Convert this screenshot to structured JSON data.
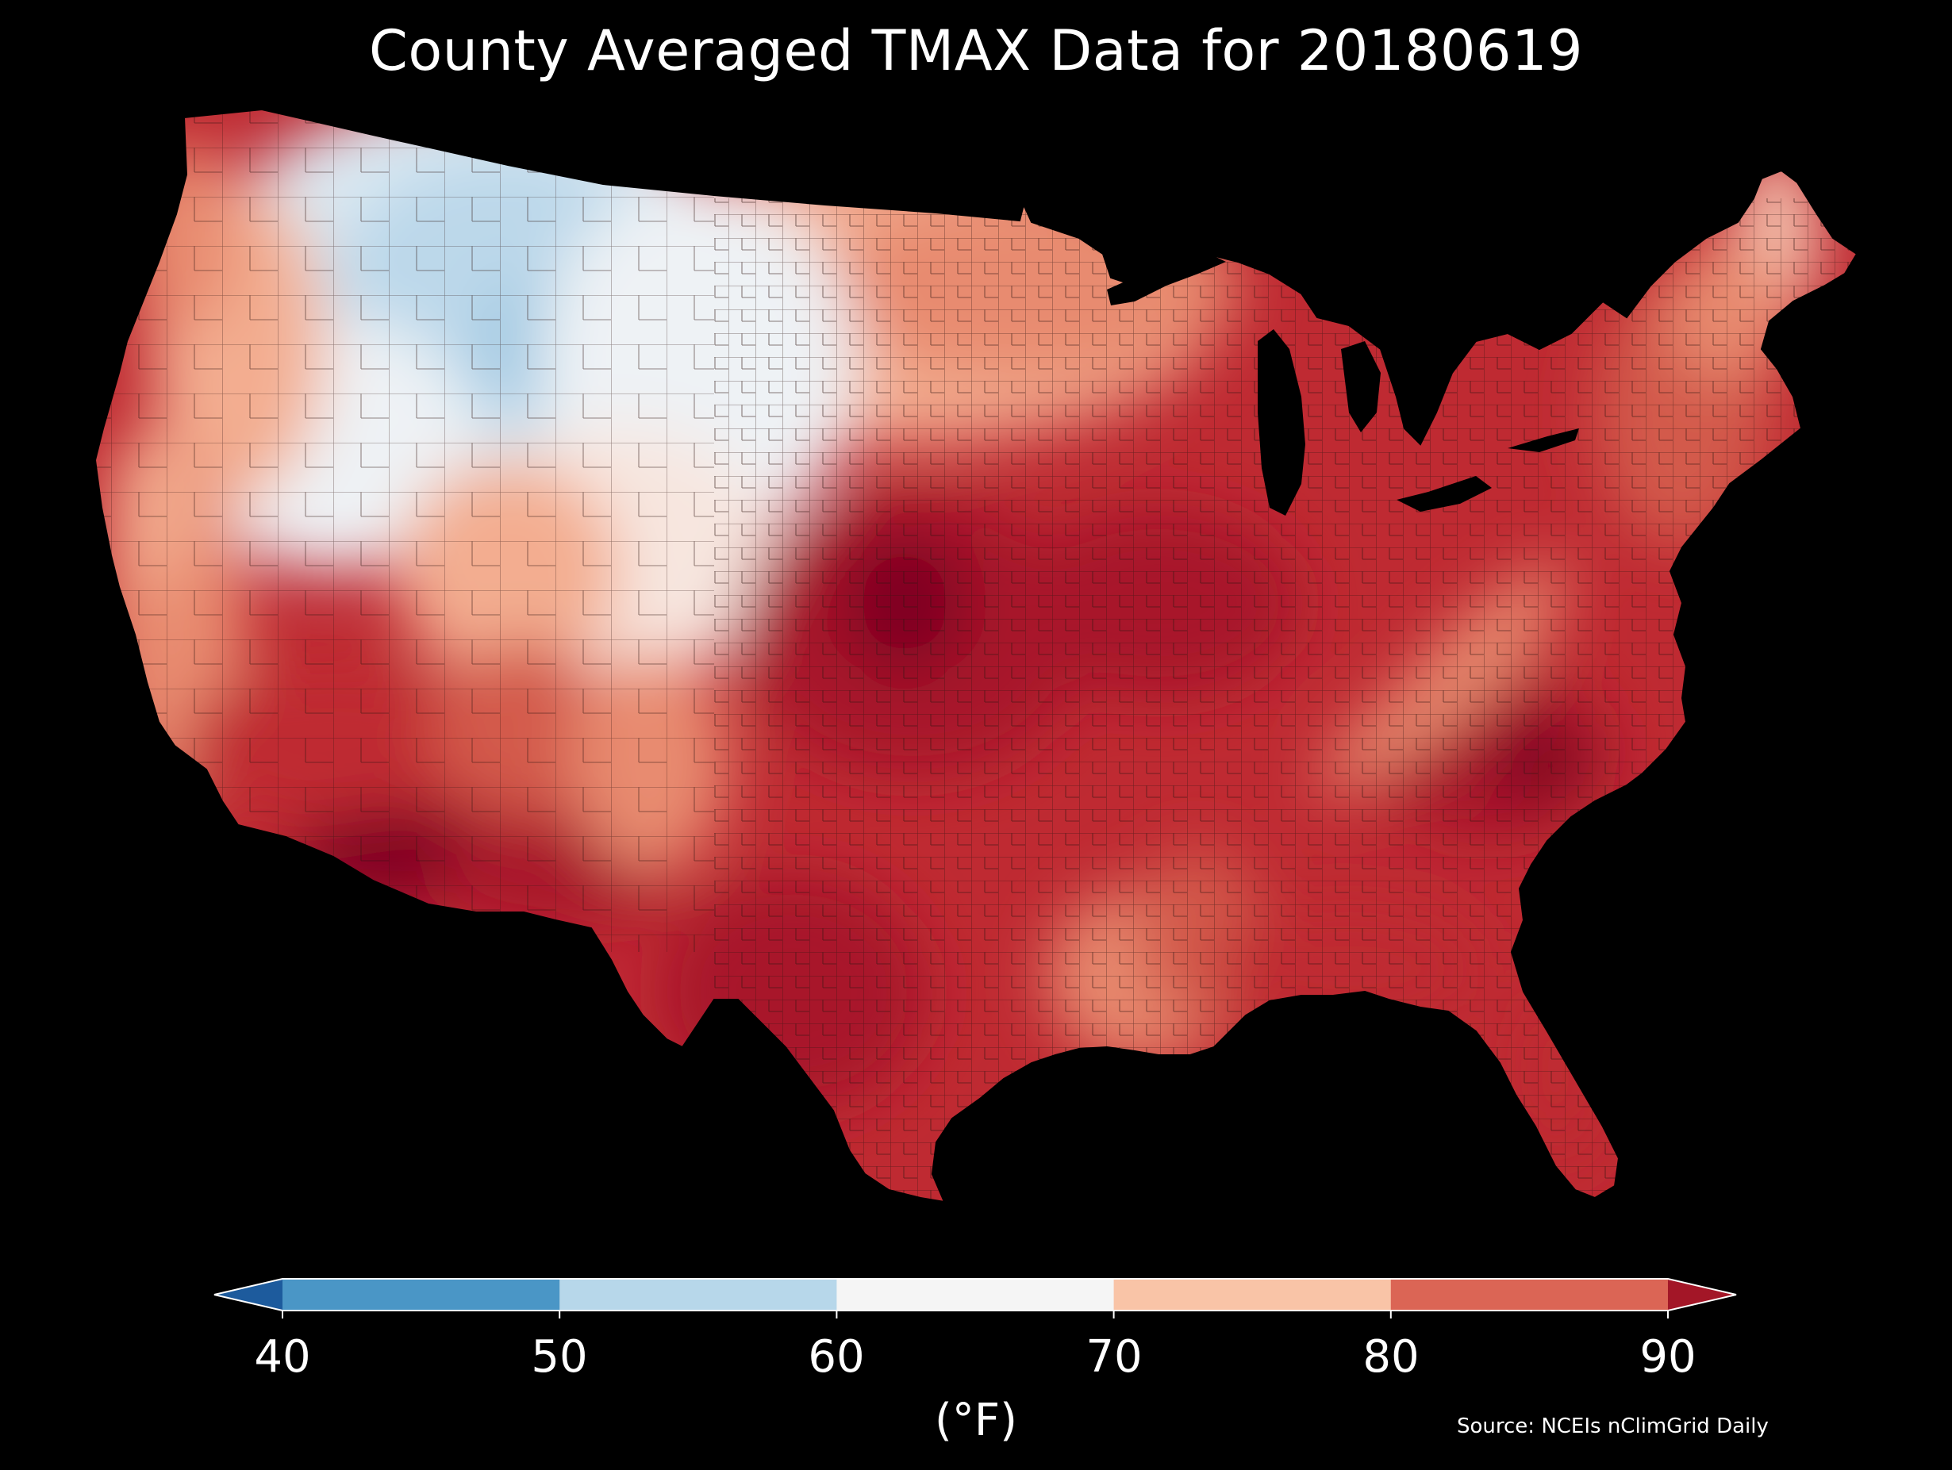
{
  "title": "County Averaged TMAX Data for 20180619",
  "source": "Source: NCEIs nClimGrid Daily",
  "map": {
    "region": "Contiguous United States",
    "variable": "TMAX",
    "aggregation": "county average",
    "date": "20180619",
    "background_color": "#000000",
    "land_mask_color": "#000000",
    "county_border_color": "#3a1a12",
    "warm_pattern": "hottest (90+) across Texas, southern Arizona, the Plains and the Southeast; coolest (50-60) in Montana, Wyoming and Idaho; Appalachian ridge in the 80s"
  },
  "colorbar": {
    "units": "(°F)",
    "ticks": [
      "40",
      "50",
      "60",
      "70",
      "80",
      "90"
    ],
    "bins": [
      {
        "range": "<40",
        "color": "#1d5b9d"
      },
      {
        "range": "40-50",
        "color": "#4a96c6"
      },
      {
        "range": "50-60",
        "color": "#b7d7ea"
      },
      {
        "range": "60-70",
        "color": "#f5f5f5"
      },
      {
        "range": "70-80",
        "color": "#f9c4a7"
      },
      {
        "range": "80-90",
        "color": "#db6555"
      },
      {
        "range": ">90",
        "color": "#a31627"
      }
    ],
    "extend": "both"
  },
  "palette": {
    "c_90plus_dark": "#7f0622",
    "c_90plus": "#a8172c",
    "c_85_90": "#bf2a32",
    "c_80_85": "#d35a4b",
    "c_77_80": "#e88b6f",
    "c_73_77": "#f3ad90",
    "c_70_73": "#f8cdb8",
    "c_66_70": "#f7e6df",
    "c_62_66": "#eef2f5",
    "c_58_62": "#dbe9f2",
    "c_54_58": "#bcd8ea",
    "c_50_54": "#9fc8e2"
  }
}
